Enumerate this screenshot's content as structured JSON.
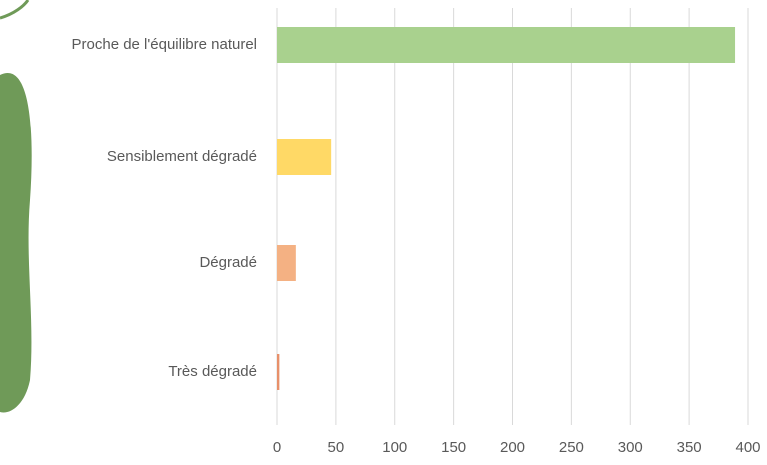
{
  "chart_data": {
    "type": "barh",
    "categories": [
      "Proche de l'équilibre naturel",
      "Sensiblement dégradé",
      "Dégradé",
      "Très dégradé"
    ],
    "values": [
      389,
      46,
      16,
      2
    ],
    "colors": [
      "#a9d18e",
      "#ffd966",
      "#f4b183",
      "#e8906a"
    ],
    "xlim": [
      0,
      400
    ],
    "xticks": [
      0,
      50,
      100,
      150,
      200,
      250,
      300,
      350,
      400
    ],
    "grid": true
  }
}
